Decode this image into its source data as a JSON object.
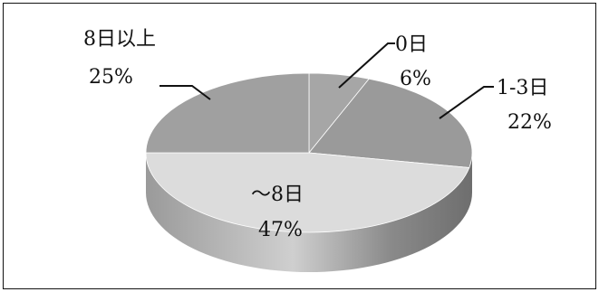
{
  "chart_data": {
    "type": "pie",
    "variant": "3d",
    "slices": [
      {
        "label": "0日",
        "value": 6,
        "pct_label": "6%",
        "color": "#a6a6a6"
      },
      {
        "label": "1-3日",
        "value": 22,
        "pct_label": "22%",
        "color": "#9a9a9a"
      },
      {
        "label": "～8日",
        "value": 47,
        "pct_label": "47%",
        "color": "#dcdcdc"
      },
      {
        "label": "8日以上",
        "value": 25,
        "pct_label": "25%",
        "color": "#a0a0a0"
      }
    ],
    "title": "",
    "legend": "none"
  }
}
